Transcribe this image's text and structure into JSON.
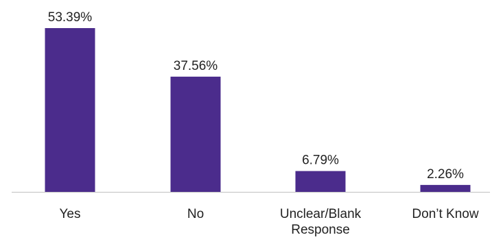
{
  "chart_data": {
    "type": "bar",
    "categories": [
      "Yes",
      "No",
      "Unclear/Blank Response",
      "Don’t Know"
    ],
    "category_lines": [
      [
        "Yes"
      ],
      [
        "No"
      ],
      [
        "Unclear/Blank",
        "Response"
      ],
      [
        "Don’t Know"
      ]
    ],
    "values": [
      53.39,
      37.56,
      6.79,
      2.26
    ],
    "value_labels": [
      "53.39%",
      "37.56%",
      "6.79%",
      "2.26%"
    ],
    "unit": "%",
    "ylim": [
      0,
      53.39
    ],
    "grid": false,
    "legend": "none",
    "title": "",
    "xlabel": "",
    "ylabel": "",
    "colors": {
      "bar": "#4b2c8c",
      "axis": "#bfbfbf",
      "text": "#222222"
    }
  }
}
